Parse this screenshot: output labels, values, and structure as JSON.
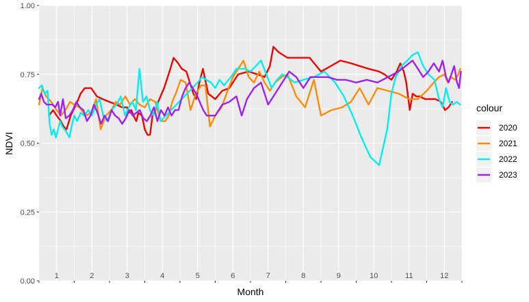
{
  "chart_data": {
    "type": "line",
    "xlabel": "Month",
    "ylabel": "NDVI",
    "xlim": [
      0.5,
      12.5
    ],
    "ylim": [
      0,
      1
    ],
    "x_ticks": [
      1,
      2,
      3,
      4,
      5,
      6,
      7,
      8,
      9,
      10,
      11,
      12
    ],
    "x_tick_labels": [
      "1",
      "2",
      "3",
      "4",
      "5",
      "6",
      "7",
      "8",
      "9",
      "10",
      "11",
      "12"
    ],
    "y_ticks": [
      0,
      0.25,
      0.5,
      0.75,
      1
    ],
    "y_tick_labels": [
      "0.00",
      "0.25",
      "0.50",
      "0.75",
      "1.00"
    ],
    "grid": true,
    "legend_title": "colour",
    "legend_position": "right",
    "series": [
      {
        "name": "2020",
        "color": "#EE0000",
        "x": [
          0.78,
          0.9,
          1.0,
          1.12,
          1.2,
          1.28,
          1.4,
          1.55,
          1.68,
          1.8,
          1.98,
          2.14,
          2.3,
          2.5,
          2.7,
          2.85,
          3.0,
          3.05,
          3.12,
          3.18,
          3.26,
          3.32,
          3.42,
          3.5,
          3.58,
          3.65,
          3.72,
          3.8,
          3.88,
          4.05,
          4.2,
          4.32,
          4.45,
          4.55,
          4.68,
          4.78,
          4.88,
          4.96,
          5.05,
          5.15,
          5.3,
          5.5,
          5.7,
          5.9,
          6.15,
          6.45,
          6.7,
          6.9,
          7.05,
          7.15,
          7.3,
          7.55,
          7.8,
          8.0,
          8.18,
          8.5,
          8.78,
          9.05,
          9.35,
          9.6,
          9.85,
          10.15,
          10.3,
          10.5,
          10.65,
          10.75,
          10.85,
          10.92,
          11.02,
          11.1,
          11.2,
          11.3,
          11.45,
          11.6,
          11.75,
          11.9,
          12.02,
          12.12,
          12.22
        ],
        "y": [
          0.6,
          0.62,
          0.6,
          0.58,
          0.56,
          0.55,
          0.6,
          0.64,
          0.68,
          0.7,
          0.7,
          0.67,
          0.66,
          0.65,
          0.64,
          0.63,
          0.63,
          0.61,
          0.62,
          0.6,
          0.58,
          0.61,
          0.6,
          0.55,
          0.53,
          0.53,
          0.6,
          0.62,
          0.65,
          0.7,
          0.76,
          0.81,
          0.79,
          0.77,
          0.76,
          0.72,
          0.68,
          0.66,
          0.72,
          0.77,
          0.68,
          0.66,
          0.69,
          0.7,
          0.75,
          0.76,
          0.75,
          0.74,
          0.78,
          0.85,
          0.83,
          0.81,
          0.81,
          0.81,
          0.81,
          0.76,
          0.78,
          0.8,
          0.79,
          0.78,
          0.77,
          0.76,
          0.75,
          0.73,
          0.76,
          0.79,
          0.76,
          0.72,
          0.62,
          0.68,
          0.67,
          0.67,
          0.66,
          0.66,
          0.66,
          0.65,
          0.62,
          0.63,
          0.65
        ]
      },
      {
        "name": "2021",
        "color": "#FF8C00",
        "x": [
          0.5,
          0.6,
          0.7,
          0.85,
          1.0,
          1.12,
          1.25,
          1.38,
          1.5,
          1.65,
          1.82,
          1.98,
          2.12,
          2.25,
          2.4,
          2.55,
          2.68,
          2.8,
          2.95,
          3.08,
          3.22,
          3.35,
          3.5,
          3.65,
          3.8,
          3.95,
          4.08,
          4.18,
          4.28,
          4.38,
          4.52,
          4.66,
          4.8,
          4.95,
          5.1,
          5.22,
          5.35,
          5.5,
          5.68,
          5.85,
          6.0,
          6.15,
          6.3,
          6.45,
          6.6,
          6.75,
          6.9,
          7.05,
          7.2,
          7.38,
          7.55,
          7.8,
          8.05,
          8.3,
          8.5,
          8.8,
          9.1,
          9.35,
          9.6,
          9.85,
          10.1,
          10.4,
          10.7,
          11.0,
          11.25,
          11.5,
          11.7,
          11.85,
          12.0,
          12.1,
          12.2,
          12.3,
          12.4,
          12.45
        ],
        "y": [
          0.64,
          0.7,
          0.67,
          0.65,
          0.62,
          0.6,
          0.62,
          0.65,
          0.64,
          0.63,
          0.6,
          0.61,
          0.66,
          0.55,
          0.6,
          0.62,
          0.65,
          0.64,
          0.67,
          0.64,
          0.66,
          0.64,
          0.63,
          0.66,
          0.65,
          0.58,
          0.58,
          0.6,
          0.65,
          0.68,
          0.73,
          0.72,
          0.62,
          0.68,
          0.71,
          0.71,
          0.56,
          0.6,
          0.63,
          0.69,
          0.74,
          0.77,
          0.8,
          0.74,
          0.72,
          0.76,
          0.72,
          0.69,
          0.72,
          0.74,
          0.75,
          0.67,
          0.63,
          0.73,
          0.6,
          0.62,
          0.63,
          0.65,
          0.7,
          0.64,
          0.7,
          0.69,
          0.68,
          0.66,
          0.66,
          0.69,
          0.72,
          0.74,
          0.75,
          0.72,
          0.74,
          0.73,
          0.75,
          0.77
        ]
      },
      {
        "name": "2022",
        "color": "#00EEEE",
        "x": [
          0.5,
          0.58,
          0.66,
          0.74,
          0.8,
          0.86,
          0.92,
          0.98,
          1.04,
          1.1,
          1.16,
          1.22,
          1.28,
          1.36,
          1.44,
          1.5,
          1.58,
          1.68,
          1.78,
          1.9,
          2.0,
          2.12,
          2.22,
          2.32,
          2.44,
          2.56,
          2.7,
          2.82,
          2.94,
          3.05,
          3.15,
          3.25,
          3.35,
          3.45,
          3.55,
          3.65,
          3.75,
          3.85,
          3.95,
          4.1,
          4.25,
          4.4,
          4.55,
          4.7,
          4.85,
          5.0,
          5.12,
          5.25,
          5.38,
          5.5,
          5.62,
          5.75,
          5.88,
          6.0,
          6.1,
          6.2,
          6.35,
          6.5,
          6.65,
          6.8,
          6.95,
          7.1,
          7.25,
          7.4,
          7.55,
          7.75,
          8.0,
          8.3,
          8.6,
          8.9,
          9.15,
          9.4,
          9.65,
          9.9,
          10.15,
          10.38,
          10.5,
          10.62,
          10.78,
          10.95,
          11.1,
          11.25,
          11.4,
          11.55,
          11.72,
          11.85,
          11.95,
          12.05,
          12.15,
          12.25,
          12.35,
          12.45
        ],
        "y": [
          0.7,
          0.71,
          0.68,
          0.69,
          0.57,
          0.53,
          0.55,
          0.52,
          0.55,
          0.58,
          0.56,
          0.55,
          0.54,
          0.52,
          0.57,
          0.6,
          0.58,
          0.61,
          0.6,
          0.62,
          0.6,
          0.64,
          0.66,
          0.6,
          0.58,
          0.62,
          0.64,
          0.67,
          0.6,
          0.63,
          0.65,
          0.62,
          0.77,
          0.65,
          0.67,
          0.62,
          0.6,
          0.65,
          0.58,
          0.6,
          0.62,
          0.64,
          0.66,
          0.68,
          0.7,
          0.72,
          0.74,
          0.73,
          0.72,
          0.7,
          0.73,
          0.71,
          0.73,
          0.75,
          0.77,
          0.77,
          0.77,
          0.76,
          0.78,
          0.8,
          0.75,
          0.7,
          0.73,
          0.75,
          0.74,
          0.72,
          0.73,
          0.74,
          0.76,
          0.72,
          0.67,
          0.6,
          0.52,
          0.45,
          0.42,
          0.55,
          0.68,
          0.74,
          0.78,
          0.8,
          0.82,
          0.83,
          0.78,
          0.75,
          0.73,
          0.66,
          0.63,
          0.7,
          0.65,
          0.64,
          0.65,
          0.64
        ]
      },
      {
        "name": "2023",
        "color": "#A020F0",
        "x": [
          0.5,
          0.56,
          0.64,
          0.72,
          0.8,
          0.88,
          0.96,
          1.04,
          1.1,
          1.18,
          1.26,
          1.36,
          1.46,
          1.56,
          1.66,
          1.76,
          1.86,
          1.96,
          2.06,
          2.16,
          2.26,
          2.36,
          2.46,
          2.56,
          2.66,
          2.76,
          2.86,
          2.96,
          3.06,
          3.16,
          3.26,
          3.36,
          3.46,
          3.56,
          3.66,
          3.76,
          3.86,
          3.96,
          4.06,
          4.16,
          4.26,
          4.36,
          4.46,
          4.56,
          4.66,
          4.76,
          4.86,
          4.96,
          5.06,
          5.16,
          5.26,
          5.36,
          5.5,
          5.7,
          5.9,
          6.1,
          6.25,
          6.4,
          6.6,
          6.8,
          7.0,
          7.2,
          7.4,
          7.6,
          7.8,
          8.0,
          8.2,
          8.45,
          8.7,
          8.95,
          9.2,
          9.5,
          9.8,
          10.1,
          10.4,
          10.7,
          10.9,
          11.1,
          11.25,
          11.4,
          11.55,
          11.7,
          11.85,
          11.95,
          12.05,
          12.12,
          12.2,
          12.28,
          12.36,
          12.42,
          12.47
        ],
        "y": [
          0.66,
          0.68,
          0.65,
          0.64,
          0.64,
          0.64,
          0.63,
          0.65,
          0.6,
          0.66,
          0.59,
          0.6,
          0.62,
          0.65,
          0.63,
          0.62,
          0.58,
          0.6,
          0.64,
          0.61,
          0.57,
          0.6,
          0.58,
          0.62,
          0.6,
          0.59,
          0.57,
          0.59,
          0.62,
          0.6,
          0.61,
          0.62,
          0.59,
          0.58,
          0.6,
          0.63,
          0.58,
          0.62,
          0.6,
          0.63,
          0.6,
          0.62,
          0.62,
          0.67,
          0.7,
          0.72,
          0.7,
          0.68,
          0.65,
          0.62,
          0.6,
          0.6,
          0.6,
          0.64,
          0.65,
          0.67,
          0.6,
          0.66,
          0.7,
          0.72,
          0.64,
          0.68,
          0.72,
          0.76,
          0.74,
          0.7,
          0.74,
          0.74,
          0.74,
          0.73,
          0.73,
          0.72,
          0.73,
          0.72,
          0.74,
          0.76,
          0.78,
          0.8,
          0.77,
          0.74,
          0.76,
          0.79,
          0.76,
          0.8,
          0.74,
          0.72,
          0.75,
          0.78,
          0.72,
          0.7,
          0.76
        ]
      }
    ]
  }
}
